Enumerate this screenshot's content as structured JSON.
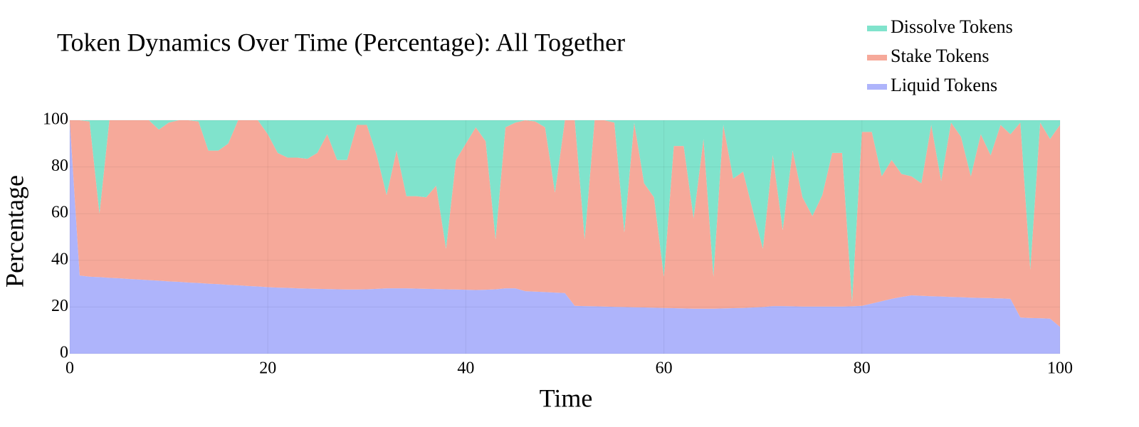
{
  "chart_data": {
    "type": "stacked_area",
    "title": "Token Dynamics Over Time (Percentage): All Together",
    "xlabel": "Time",
    "ylabel": "Percentage",
    "x": [
      0,
      1,
      2,
      3,
      4,
      5,
      6,
      7,
      8,
      9,
      10,
      11,
      12,
      13,
      14,
      15,
      16,
      17,
      18,
      19,
      20,
      21,
      22,
      23,
      24,
      25,
      26,
      27,
      28,
      29,
      30,
      31,
      32,
      33,
      34,
      35,
      36,
      37,
      38,
      39,
      40,
      41,
      42,
      43,
      44,
      45,
      46,
      47,
      48,
      49,
      50,
      51,
      52,
      53,
      54,
      55,
      56,
      57,
      58,
      59,
      60,
      61,
      62,
      63,
      64,
      65,
      66,
      67,
      68,
      69,
      70,
      71,
      72,
      73,
      74,
      75,
      76,
      77,
      78,
      79,
      80,
      81,
      82,
      83,
      84,
      85,
      86,
      87,
      88,
      89,
      90,
      91,
      92,
      93,
      94,
      95,
      96,
      97,
      98,
      99,
      100
    ],
    "series": [
      {
        "name": "Liquid Tokens",
        "color": "#aeb4fb",
        "values": [
          100,
          33.5,
          33,
          32.8,
          32.5,
          32.3,
          32,
          31.8,
          31.5,
          31.3,
          31,
          30.8,
          30.5,
          30.3,
          30,
          29.8,
          29.5,
          29.3,
          29,
          28.8,
          28.5,
          28.3,
          28.2,
          28,
          27.9,
          27.8,
          27.7,
          27.6,
          27.5,
          27.5,
          27.6,
          27.8,
          28,
          28,
          28,
          27.9,
          27.8,
          27.7,
          27.6,
          27.5,
          27.4,
          27.3,
          27.4,
          27.6,
          28,
          28,
          26.8,
          26.6,
          26.4,
          26.2,
          26,
          20.5,
          20.4,
          20.3,
          20.2,
          20.1,
          20,
          19.9,
          19.8,
          19.7,
          19.6,
          19.5,
          19.4,
          19.3,
          19.3,
          19.3,
          19.4,
          19.5,
          19.6,
          19.8,
          20,
          20.4,
          20.4,
          20.3,
          20.2,
          20.2,
          20.2,
          20.2,
          20.2,
          20.3,
          20.5,
          21.5,
          22.5,
          23.5,
          24.3,
          25,
          24.8,
          24.6,
          24.5,
          24.3,
          24.2,
          24,
          23.9,
          23.8,
          23.7,
          23.5,
          15.5,
          15.3,
          15.2,
          15,
          11.5
        ]
      },
      {
        "name": "Stake Tokens",
        "color": "#f6a99a",
        "values": [
          0,
          66.5,
          66.5,
          27.2,
          67.5,
          67.7,
          68,
          68.2,
          68.5,
          64.7,
          68,
          69.2,
          69.5,
          69.2,
          57,
          57.2,
          60.5,
          70.7,
          71,
          71.2,
          65.5,
          57.7,
          55.8,
          56,
          55.6,
          58.2,
          66.3,
          55.4,
          55.5,
          70.5,
          70.4,
          57.2,
          40,
          59,
          39.5,
          39.6,
          39.2,
          44.3,
          17.4,
          55.5,
          62.6,
          69.7,
          63.6,
          21.4,
          69,
          71,
          73.2,
          72.9,
          70.6,
          42.8,
          74,
          79.5,
          28.6,
          79.7,
          79.8,
          78.9,
          32,
          79.1,
          53.2,
          47.3,
          13.4,
          69.5,
          69.6,
          38.7,
          72.7,
          13.7,
          78.6,
          55.5,
          58.4,
          41.2,
          25,
          64.6,
          32.6,
          66.7,
          46.8,
          38.8,
          47.8,
          65.8,
          65.8,
          1.7,
          74.5,
          73.5,
          53.5,
          59.5,
          52.7,
          51,
          48.2,
          73.4,
          49.5,
          74.7,
          68.8,
          52,
          70.1,
          61.2,
          74.3,
          70.5,
          83.5,
          20.7,
          83.8,
          77,
          86.5
        ]
      },
      {
        "name": "Dissolve Tokens",
        "color": "#80e3cc",
        "values": [
          0,
          0,
          0.5,
          40,
          0,
          0,
          0,
          0,
          0,
          4,
          1,
          0,
          0,
          0.5,
          13,
          13,
          10,
          0,
          0,
          0,
          6,
          14,
          16,
          16,
          16.5,
          14,
          6,
          17,
          17,
          2,
          2,
          15,
          32,
          13,
          32.5,
          32.5,
          33,
          28,
          55,
          17,
          10,
          3,
          9,
          51,
          3,
          1,
          0,
          0.5,
          3,
          31,
          0,
          0,
          51,
          0,
          0,
          1,
          48,
          1,
          27,
          33,
          67,
          11,
          11,
          42,
          8,
          67,
          2,
          25,
          22,
          39,
          55,
          15,
          47,
          13,
          33,
          41,
          32,
          14,
          14,
          78,
          5,
          5,
          24,
          17,
          23,
          24,
          27,
          2,
          26,
          1,
          7,
          24,
          6,
          15,
          2,
          6,
          1,
          64,
          1,
          8,
          2
        ]
      }
    ],
    "xlim": [
      0,
      100
    ],
    "ylim": [
      0,
      100
    ],
    "xticks": [
      0,
      20,
      40,
      60,
      80,
      100
    ],
    "yticks": [
      0,
      20,
      40,
      60,
      80,
      100
    ],
    "grid": true,
    "legend": "top-right"
  }
}
